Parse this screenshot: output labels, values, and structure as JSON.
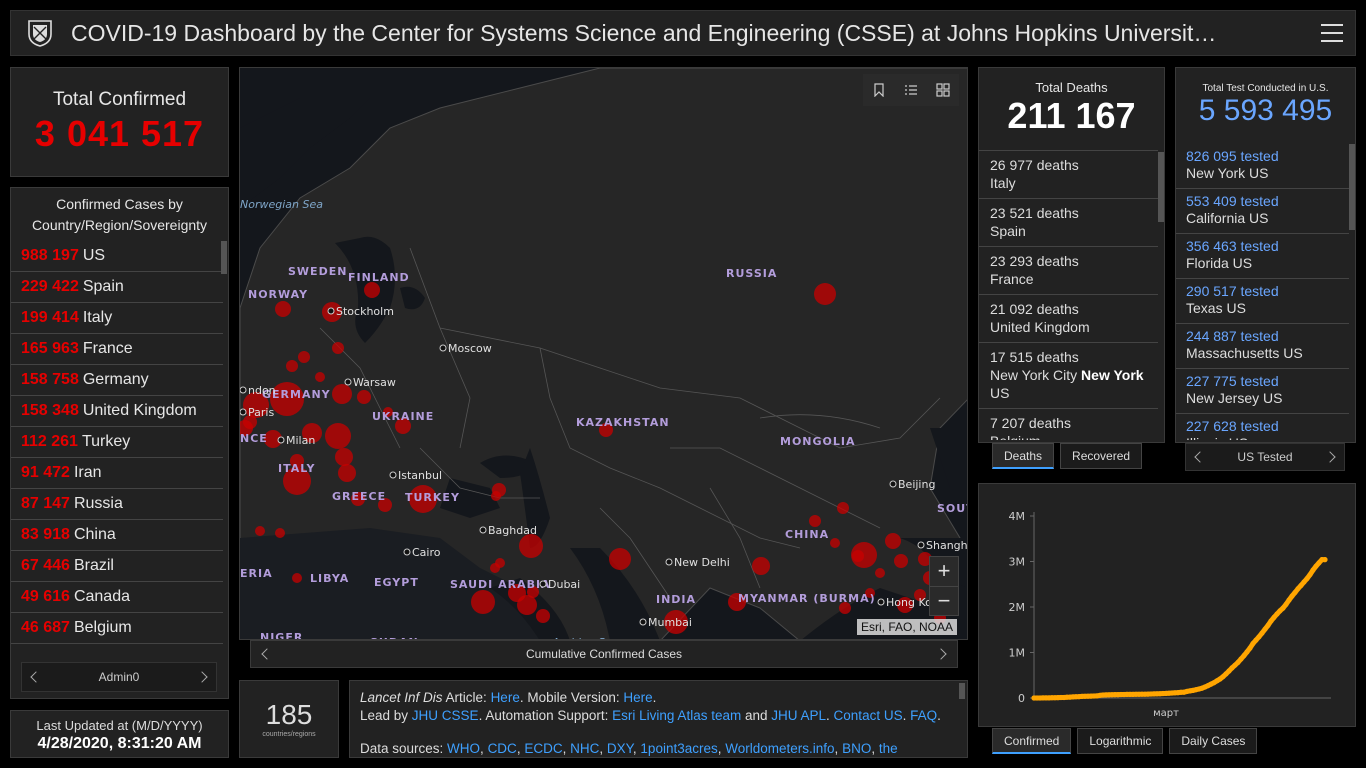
{
  "header": {
    "title": "COVID-19 Dashboard by the Center for Systems Science and Engineering (CSSE) at Johns Hopkins Universit…"
  },
  "total_confirmed": {
    "label": "Total Confirmed",
    "value": "3 041 517"
  },
  "confirmed_list": {
    "title": "Confirmed Cases by Country/Region/Sovereignty",
    "items": [
      {
        "count": "988 197",
        "name": "US"
      },
      {
        "count": "229 422",
        "name": "Spain"
      },
      {
        "count": "199 414",
        "name": "Italy"
      },
      {
        "count": "165 963",
        "name": "France"
      },
      {
        "count": "158 758",
        "name": "Germany"
      },
      {
        "count": "158 348",
        "name": "United Kingdom"
      },
      {
        "count": "112 261",
        "name": "Turkey"
      },
      {
        "count": "91 472",
        "name": "Iran"
      },
      {
        "count": "87 147",
        "name": "Russia"
      },
      {
        "count": "83 918",
        "name": "China"
      },
      {
        "count": "67 446",
        "name": "Brazil"
      },
      {
        "count": "49 616",
        "name": "Canada"
      },
      {
        "count": "46 687",
        "name": "Belgium"
      }
    ],
    "pager_label": "Admin0"
  },
  "last_updated": {
    "label": "Last Updated at (M/D/YYYY)",
    "value": "4/28/2020, 8:31:20 AM"
  },
  "map": {
    "caption": "Cumulative Confirmed Cases",
    "attribution": "Esri, FAO, NOAA",
    "zoom_in": "+",
    "zoom_out": "−",
    "labels": [
      {
        "text": "Norwegian Sea",
        "kind": "sea"
      },
      {
        "text": "SWEDEN",
        "kind": "country"
      },
      {
        "text": "FINLAND",
        "kind": "country"
      },
      {
        "text": "NORWAY",
        "kind": "country"
      },
      {
        "text": "RUSSIA",
        "kind": "country"
      },
      {
        "text": "Stockholm",
        "kind": "city"
      },
      {
        "text": "Moscow",
        "kind": "city"
      },
      {
        "text": "Warsaw",
        "kind": "city"
      },
      {
        "text": "GERMANY",
        "kind": "country"
      },
      {
        "text": "Paris",
        "kind": "city"
      },
      {
        "text": "UKRAINE",
        "kind": "country"
      },
      {
        "text": "KAZAKHSTAN",
        "kind": "country"
      },
      {
        "text": "MONGOLIA",
        "kind": "country"
      },
      {
        "text": "Milan",
        "kind": "city"
      },
      {
        "text": "ITALY",
        "kind": "country"
      },
      {
        "text": "Istanbul",
        "kind": "city"
      },
      {
        "text": "GREECE",
        "kind": "country"
      },
      {
        "text": "TURKEY",
        "kind": "country"
      },
      {
        "text": "Beijing",
        "kind": "city"
      },
      {
        "text": "Baghdad",
        "kind": "city"
      },
      {
        "text": "CHINA",
        "kind": "country"
      },
      {
        "text": "Shanghai",
        "kind": "city"
      },
      {
        "text": "LIBYA",
        "kind": "country"
      },
      {
        "text": "EGYPT",
        "kind": "country"
      },
      {
        "text": "Cairo",
        "kind": "city"
      },
      {
        "text": "New Delhi",
        "kind": "city"
      },
      {
        "text": "SAUDI ARABIA",
        "kind": "country"
      },
      {
        "text": "Dubai",
        "kind": "city"
      },
      {
        "text": "INDIA",
        "kind": "country"
      },
      {
        "text": "MYANMAR (BURMA)",
        "kind": "country"
      },
      {
        "text": "Hong Kong",
        "kind": "city"
      },
      {
        "text": "Mumbai",
        "kind": "city"
      },
      {
        "text": "NIGER",
        "kind": "country"
      },
      {
        "text": "SUDAN",
        "kind": "country"
      },
      {
        "text": "Arabian Sea",
        "kind": "sea"
      },
      {
        "text": "SOUTH KOREA",
        "kind": "country"
      },
      {
        "text": "ndon",
        "kind": "city"
      },
      {
        "text": "NCE",
        "kind": "country"
      },
      {
        "text": "ERIA",
        "kind": "country"
      }
    ]
  },
  "country_count": {
    "value": "185",
    "label": "countries/regions"
  },
  "sources": {
    "line1_italic": "Lancet Inf Dis",
    "line1_article": " Article: ",
    "line1_here1": "Here",
    "line1_mobile": ". Mobile Version: ",
    "line1_here2": "Here",
    "line1_end": ".",
    "line2_lead": "Lead by ",
    "line2_csse": "JHU CSSE",
    "line2_auto": ". Automation Support: ",
    "line2_esri": "Esri Living Atlas team",
    "line2_and": " and ",
    "line2_apl": "JHU APL",
    "line2_dot": ". ",
    "line2_contact": "Contact US",
    "line2_dot2": ". ",
    "line2_faq": "FAQ",
    "line2_end": ".",
    "line3_label": "Data sources: ",
    "line3_links": [
      "WHO",
      "CDC",
      "ECDC",
      "NHC",
      "DXY",
      "1point3acres",
      "Worldometers.info",
      "BNO",
      "the"
    ]
  },
  "deaths": {
    "label": "Total Deaths",
    "value": "211 167",
    "items": [
      {
        "count": "26 977 deaths",
        "place": "Italy"
      },
      {
        "count": "23 521 deaths",
        "place": "Spain"
      },
      {
        "count": "23 293 deaths",
        "place": "France"
      },
      {
        "count": "21 092 deaths",
        "place": "United Kingdom"
      },
      {
        "count": "17 515 deaths",
        "place_pre": "New York City ",
        "place_bold": "New York",
        "place_post": " US"
      },
      {
        "count": "7 207 deaths",
        "place": "Belgium"
      }
    ],
    "tabs": [
      "Deaths",
      "Recovered"
    ]
  },
  "tests": {
    "label": "Total Test Conducted in U.S.",
    "value": "5 593 495",
    "items": [
      {
        "tested": "826 095 tested",
        "place": "New York US"
      },
      {
        "tested": "553 409 tested",
        "place": "California US"
      },
      {
        "tested": "356 463 tested",
        "place": "Florida US"
      },
      {
        "tested": "290 517 tested",
        "place": "Texas US"
      },
      {
        "tested": "244 887 tested",
        "place": "Massachusetts US"
      },
      {
        "tested": "227 775 tested",
        "place": "New Jersey US"
      },
      {
        "tested": "227 628 tested",
        "place": "Illinois US"
      }
    ],
    "pager_label": "US Tested"
  },
  "chart_tabs": [
    "Confirmed",
    "Logarithmic",
    "Daily Cases"
  ],
  "chart_data": {
    "type": "line",
    "title": "",
    "xlabel": "",
    "ylabel": "",
    "x_tick_labels": [
      "март"
    ],
    "y_tick_labels": [
      "0",
      "1M",
      "2M",
      "3M",
      "4M"
    ],
    "ylim": [
      0,
      4000000
    ],
    "color": "#ffa500",
    "series": [
      {
        "x": [
          0,
          1,
          2,
          3,
          4,
          5,
          6,
          7,
          8,
          9,
          10,
          11,
          12,
          13,
          14,
          15,
          16,
          17,
          18,
          19,
          20,
          21,
          22,
          23,
          24,
          25,
          26,
          27,
          28,
          29,
          30,
          31,
          32,
          33,
          34,
          35,
          36,
          37,
          38,
          39,
          40,
          41,
          42,
          43,
          44,
          45,
          46,
          47,
          48,
          49,
          50,
          51,
          52,
          53,
          54,
          55,
          56,
          57,
          58,
          59,
          60,
          61,
          62,
          63,
          64,
          65,
          66,
          67,
          68,
          69,
          70,
          71,
          72,
          73,
          74,
          75,
          76,
          77,
          78,
          79,
          80,
          81,
          82,
          83,
          84,
          85,
          86,
          87,
          88,
          89,
          90,
          91,
          92,
          93,
          94,
          95,
          96,
          97
        ],
        "values": [
          555,
          654,
          941,
          1434,
          2118,
          2927,
          5578,
          6166,
          8234,
          9927,
          12038,
          16787,
          19881,
          23892,
          27635,
          30794,
          34391,
          37120,
          40150,
          42762,
          44802,
          45221,
          60368,
          66885,
          69030,
          71224,
          73258,
          75136,
          75639,
          76197,
          76819,
          78572,
          78958,
          79561,
          80406,
          81388,
          82746,
          84112,
          86011,
          88369,
          90306,
          92840,
          95120,
          97886,
          101800,
          105836,
          109835,
          113582,
          118582,
          125865,
          128343,
          145193,
          156097,
          167449,
          181546,
          197168,
          214915,
          242713,
          272167,
          304528,
          336953,
          378235,
          418045,
          467653,
          529591,
          593291,
          660706,
          720117,
          782365,
          857487,
          932605,
          1013157,
          1095917,
          1197405,
          1272115,
          1345101,
          1426096,
          1511104,
          1595350,
          1691719,
          1771514,
          1846679,
          1917320,
          1976191,
          2056054,
          2152437,
          2240190,
          2317759,
          2401379,
          2472259,
          2549123,
          2624000,
          2708885,
          2811193,
          2896633,
          2971475,
          3041517,
          3041517
        ]
      }
    ]
  }
}
